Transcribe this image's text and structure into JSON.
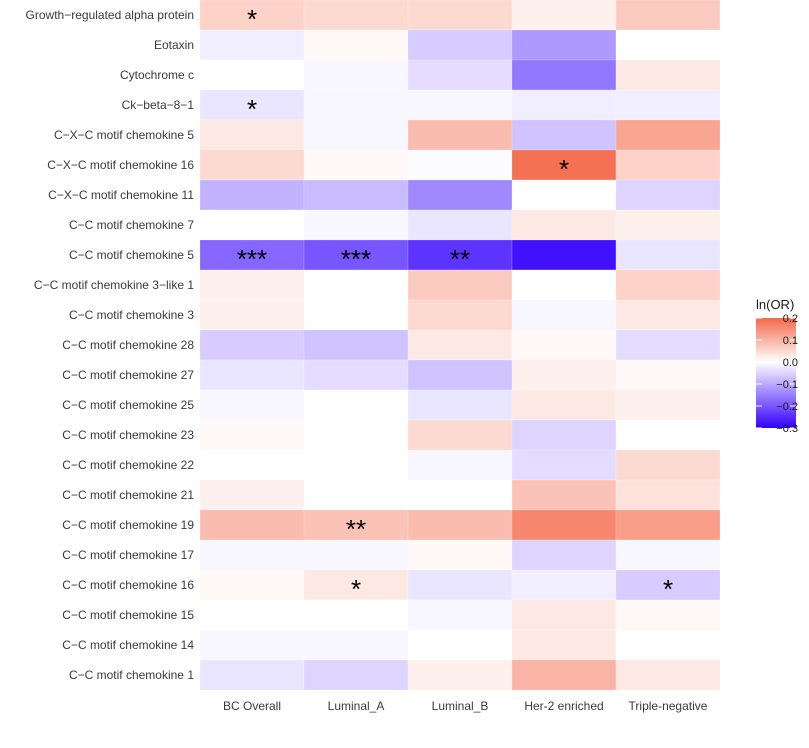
{
  "chart_data": {
    "type": "heatmap",
    "title": "",
    "xlabel": "",
    "ylabel": "",
    "columns": [
      "BC Overall",
      "Luminal_A",
      "Luminal_B",
      "Her-2 enriched",
      "Triple-negative"
    ],
    "rows": [
      "Growth−regulated alpha protein",
      "Eotaxin",
      "Cytochrome c",
      "Ck−beta−8−1",
      "C−X−C motif chemokine 5",
      "C−X−C motif chemokine 16",
      "C−X−C motif chemokine 11",
      "C−C motif chemokine 7",
      "C−C motif chemokine 5",
      "C−C motif chemokine 3−like 1",
      "C−C motif chemokine 3",
      "C−C motif chemokine 28",
      "C−C motif chemokine 27",
      "C−C motif chemokine 25",
      "C−C motif chemokine 23",
      "C−C motif chemokine 22",
      "C−C motif chemokine 21",
      "C−C motif chemokine 19",
      "C−C motif chemokine 17",
      "C−C motif chemokine 16",
      "C−C motif chemokine 15",
      "C−C motif chemokine 14",
      "C−C motif chemokine 1"
    ],
    "values": [
      [
        0.06,
        0.05,
        0.05,
        0.02,
        0.07
      ],
      [
        -0.02,
        0.01,
        -0.06,
        -0.12,
        0.0
      ],
      [
        0.0,
        -0.01,
        -0.04,
        -0.16,
        0.03
      ],
      [
        -0.03,
        -0.01,
        -0.01,
        -0.02,
        -0.02
      ],
      [
        0.03,
        -0.01,
        0.09,
        -0.07,
        0.12
      ],
      [
        0.05,
        0.01,
        -0.005,
        0.19,
        0.06
      ],
      [
        -0.09,
        -0.08,
        -0.14,
        0.0,
        -0.05
      ],
      [
        0.0,
        -0.01,
        -0.03,
        0.03,
        0.02
      ],
      [
        -0.18,
        -0.2,
        -0.24,
        -0.28,
        -0.03
      ],
      [
        0.02,
        0.0,
        0.07,
        0.0,
        0.06
      ],
      [
        0.02,
        0.0,
        0.05,
        -0.01,
        0.03
      ],
      [
        -0.06,
        -0.07,
        0.03,
        0.01,
        -0.04
      ],
      [
        -0.03,
        -0.04,
        -0.07,
        0.02,
        0.01
      ],
      [
        -0.01,
        0.0,
        -0.03,
        0.03,
        0.02
      ],
      [
        0.01,
        0.0,
        0.05,
        -0.05,
        0.0
      ],
      [
        0.0,
        0.0,
        -0.01,
        -0.04,
        0.05
      ],
      [
        0.02,
        0.0,
        0.0,
        0.08,
        0.04
      ],
      [
        0.09,
        0.08,
        0.09,
        0.16,
        0.13
      ],
      [
        -0.01,
        -0.01,
        0.01,
        -0.05,
        -0.01
      ],
      [
        0.01,
        0.03,
        -0.03,
        -0.02,
        -0.06
      ],
      [
        0.0,
        0.0,
        -0.01,
        0.03,
        0.01
      ],
      [
        -0.01,
        -0.01,
        0.0,
        0.03,
        0.0
      ],
      [
        -0.03,
        -0.05,
        0.02,
        0.1,
        0.03
      ]
    ],
    "annotations": [
      {
        "row": 0,
        "col": 0,
        "text": "*"
      },
      {
        "row": 3,
        "col": 0,
        "text": "*"
      },
      {
        "row": 5,
        "col": 3,
        "text": "*"
      },
      {
        "row": 8,
        "col": 0,
        "text": "***"
      },
      {
        "row": 8,
        "col": 1,
        "text": "***"
      },
      {
        "row": 8,
        "col": 2,
        "text": "**"
      },
      {
        "row": 17,
        "col": 1,
        "text": "**"
      },
      {
        "row": 19,
        "col": 1,
        "text": "*"
      },
      {
        "row": 19,
        "col": 4,
        "text": "*"
      }
    ],
    "legend": {
      "title": "ln(OR)",
      "ticks": [
        0.2,
        0.1,
        0.0,
        -0.1,
        -0.2,
        -0.3
      ],
      "tick_labels": [
        "0.2",
        "0.1",
        "0.0",
        "−0.1",
        "−0.2",
        "−0.3"
      ],
      "range": [
        -0.3,
        0.2
      ],
      "placement": "right"
    },
    "colors": {
      "low": "#3300ff",
      "mid": "#ffffff",
      "high": "#f4694a"
    }
  }
}
